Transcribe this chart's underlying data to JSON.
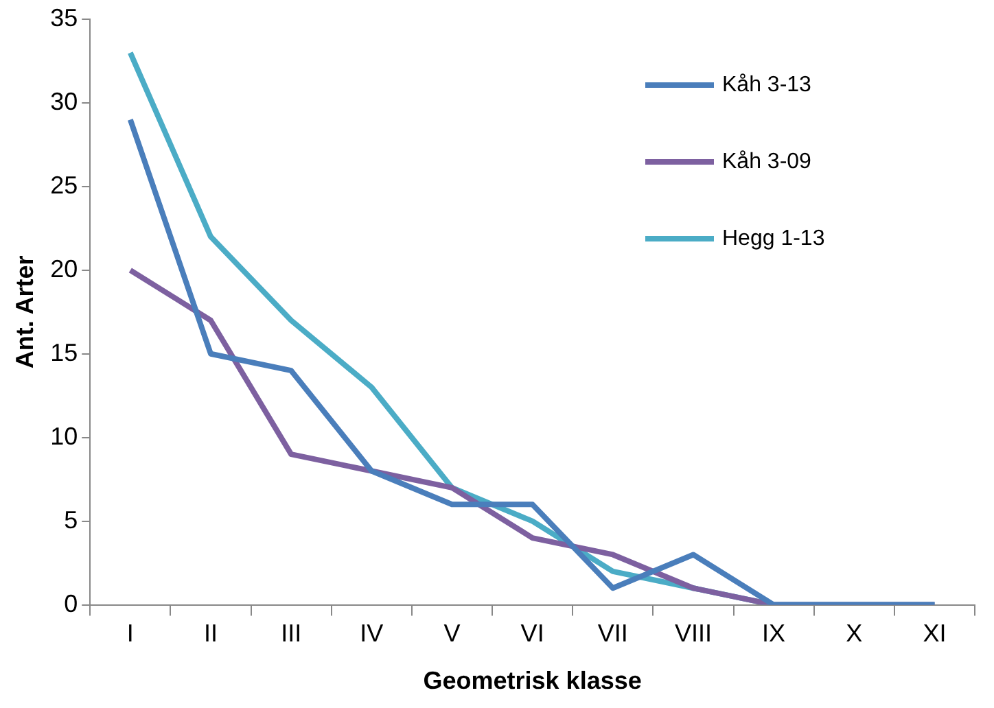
{
  "chart_data": {
    "type": "line",
    "xlabel": "Geometrisk klasse",
    "ylabel": "Ant. Arter",
    "categories": [
      "I",
      "II",
      "III",
      "IV",
      "V",
      "VI",
      "VII",
      "VIII",
      "IX",
      "X",
      "XI"
    ],
    "series": [
      {
        "name": "Kåh 3-13",
        "color": "#4a7ebb",
        "values": [
          29,
          15,
          14,
          8,
          6,
          6,
          1,
          3,
          0,
          0,
          0
        ]
      },
      {
        "name": "Kåh 3-09",
        "color": "#7d60a0",
        "values": [
          20,
          17,
          9,
          8,
          7,
          4,
          3,
          1,
          0,
          0,
          0
        ]
      },
      {
        "name": "Hegg 1-13",
        "color": "#4bacc6",
        "values": [
          33,
          22,
          17,
          13,
          7,
          5,
          2,
          1,
          0,
          0,
          0
        ]
      }
    ],
    "ylim": [
      0,
      35
    ],
    "yticks": [
      0,
      5,
      10,
      15,
      20,
      25,
      30,
      35
    ],
    "grid": false,
    "legend": "top right",
    "marker": "none",
    "line_style": "solid"
  }
}
